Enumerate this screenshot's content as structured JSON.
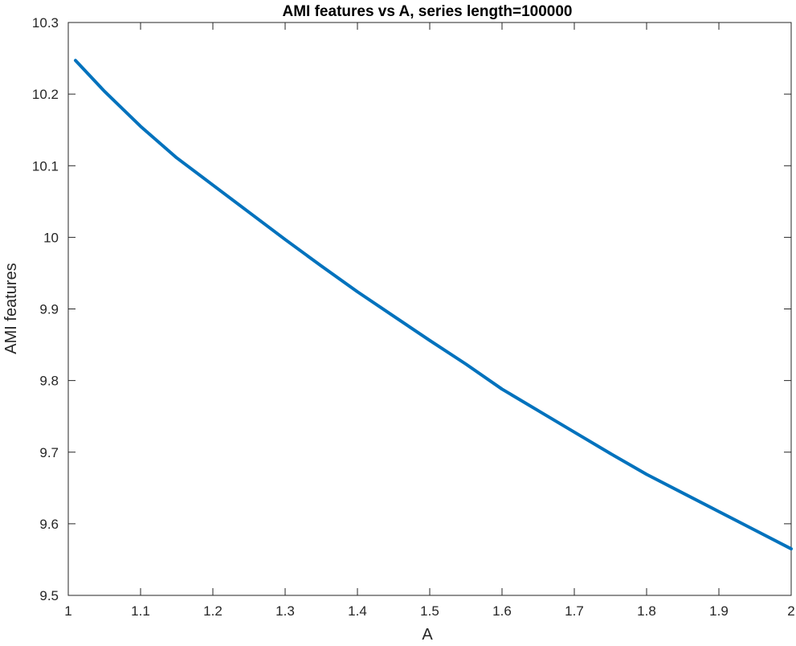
{
  "colors": {
    "series": "#0072BD",
    "axes": "#262626",
    "background": "#ffffff"
  },
  "chart_data": {
    "type": "line",
    "title": "AMI features vs A, series length=100000",
    "xlabel": "A",
    "ylabel": "AMI features",
    "xlim": [
      1,
      2
    ],
    "ylim": [
      9.5,
      10.3
    ],
    "grid": false,
    "legend": "none",
    "x_ticks": [
      "1",
      "1.1",
      "1.2",
      "1.3",
      "1.4",
      "1.5",
      "1.6",
      "1.7",
      "1.8",
      "1.9",
      "2"
    ],
    "y_ticks": [
      "9.5",
      "9.6",
      "9.7",
      "9.8",
      "9.9",
      "10",
      "10.1",
      "10.2",
      "10.3"
    ],
    "series": [
      {
        "x": [
          1.01,
          1.05,
          1.1,
          1.15,
          1.2,
          1.25,
          1.3,
          1.35,
          1.4,
          1.45,
          1.5,
          1.55,
          1.6,
          1.65,
          1.7,
          1.75,
          1.8,
          1.85,
          1.9,
          1.95,
          2.0
        ],
        "values": [
          10.247,
          10.204,
          10.155,
          10.111,
          10.073,
          10.035,
          9.997,
          9.96,
          9.924,
          9.89,
          9.856,
          9.823,
          9.788,
          9.758,
          9.728,
          9.698,
          9.669,
          9.643,
          9.617,
          9.591,
          9.565
        ]
      }
    ]
  }
}
